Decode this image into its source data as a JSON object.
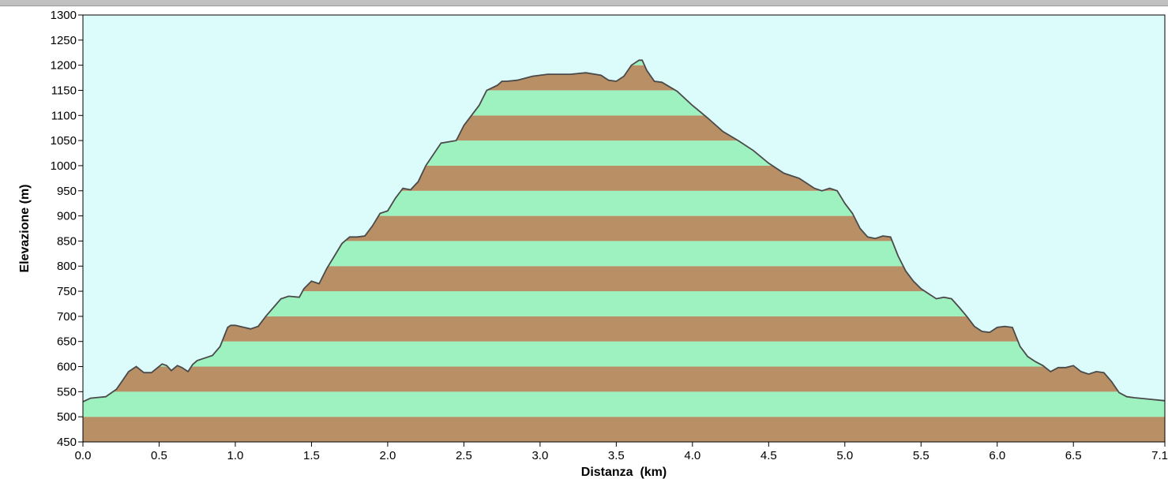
{
  "chart_data": {
    "type": "area",
    "xlabel": "Distanza  (km)",
    "ylabel": "Elevazione (m)",
    "xlim": [
      0.0,
      7.1
    ],
    "ylim": [
      450,
      1300
    ],
    "x_ticks": [
      "0.0",
      "0.5",
      "1.0",
      "1.5",
      "2.0",
      "2.5",
      "3.0",
      "3.5",
      "4.0",
      "4.5",
      "5.0",
      "5.5",
      "6.0",
      "6.5",
      "7.1"
    ],
    "y_ticks": [
      "450",
      "500",
      "550",
      "600",
      "650",
      "700",
      "750",
      "800",
      "850",
      "900",
      "950",
      "1000",
      "1050",
      "1100",
      "1150",
      "1200",
      "1250",
      "1300"
    ],
    "band_step": 50,
    "colors": {
      "background": "#dcfcfb",
      "band_brown": "#b98f66",
      "band_green": "#9ef2c0",
      "profile_line": "#4a4a4a"
    },
    "series": [
      {
        "x": [
          0.0,
          0.05,
          0.15,
          0.22,
          0.3,
          0.35,
          0.4,
          0.45,
          0.52,
          0.55,
          0.58,
          0.62,
          0.65,
          0.69,
          0.72,
          0.75,
          0.8,
          0.85,
          0.9,
          0.95,
          0.97,
          1.0,
          1.1,
          1.15,
          1.2,
          1.3,
          1.35,
          1.42,
          1.45,
          1.5,
          1.55,
          1.6,
          1.65,
          1.7,
          1.75,
          1.8,
          1.85,
          1.9,
          1.95,
          2.0,
          2.05,
          2.1,
          2.15,
          2.2,
          2.25,
          2.35,
          2.45,
          2.5,
          2.55,
          2.6,
          2.65,
          2.72,
          2.75,
          2.78,
          2.85,
          2.95,
          3.05,
          3.2,
          3.3,
          3.4,
          3.45,
          3.5,
          3.55,
          3.6,
          3.65,
          3.67,
          3.7,
          3.75,
          3.8,
          3.9,
          4.0,
          4.1,
          4.2,
          4.3,
          4.4,
          4.5,
          4.6,
          4.7,
          4.8,
          4.85,
          4.9,
          4.95,
          5.0,
          5.05,
          5.1,
          5.15,
          5.2,
          5.25,
          5.3,
          5.35,
          5.4,
          5.45,
          5.5,
          5.55,
          5.6,
          5.65,
          5.7,
          5.75,
          5.8,
          5.85,
          5.9,
          5.95,
          6.0,
          6.05,
          6.1,
          6.15,
          6.2,
          6.25,
          6.3,
          6.35,
          6.4,
          6.45,
          6.5,
          6.55,
          6.6,
          6.65,
          6.7,
          6.75,
          6.8,
          6.85,
          6.9,
          7.0,
          7.1
        ],
        "y": [
          530,
          537,
          540,
          555,
          590,
          600,
          588,
          588,
          605,
          602,
          592,
          602,
          598,
          590,
          604,
          612,
          617,
          622,
          640,
          678,
          682,
          682,
          675,
          680,
          700,
          735,
          740,
          738,
          755,
          770,
          765,
          795,
          820,
          845,
          858,
          858,
          860,
          880,
          905,
          910,
          935,
          955,
          952,
          968,
          1000,
          1045,
          1050,
          1080,
          1100,
          1120,
          1150,
          1160,
          1168,
          1168,
          1170,
          1178,
          1182,
          1182,
          1185,
          1180,
          1170,
          1168,
          1178,
          1200,
          1210,
          1210,
          1190,
          1168,
          1166,
          1148,
          1120,
          1095,
          1068,
          1050,
          1030,
          1005,
          985,
          975,
          955,
          950,
          955,
          950,
          925,
          905,
          875,
          858,
          855,
          860,
          858,
          820,
          790,
          770,
          755,
          745,
          735,
          738,
          735,
          718,
          700,
          680,
          670,
          668,
          678,
          680,
          678,
          640,
          620,
          610,
          602,
          590,
          598,
          598,
          602,
          590,
          585,
          590,
          588,
          570,
          548,
          540,
          538,
          535,
          532
        ]
      }
    ]
  }
}
